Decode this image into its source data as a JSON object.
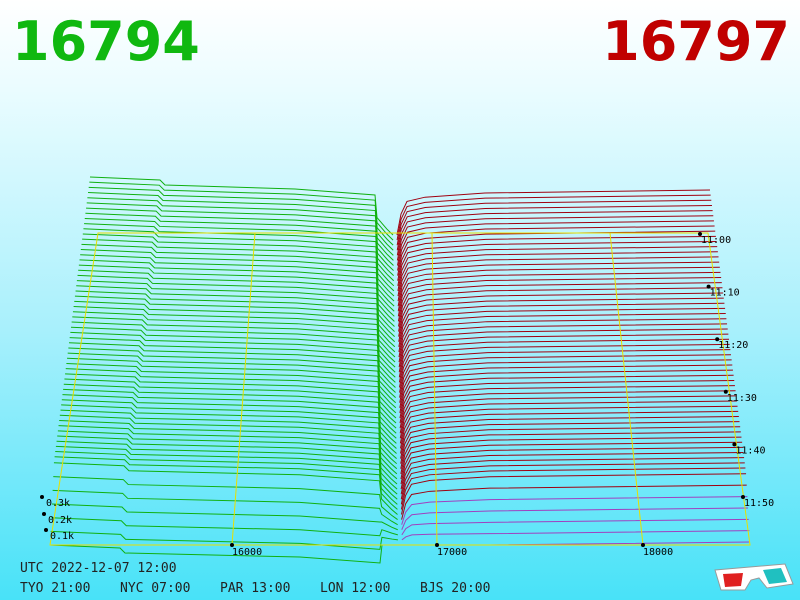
{
  "header": {
    "bid": "16794",
    "ask": "16797"
  },
  "price_axis": [
    "16000",
    "17000",
    "18000"
  ],
  "depth_axis": [
    "0.3k",
    "0.2k",
    "0.1k"
  ],
  "time_axis": [
    "11:00",
    "11:10",
    "11:20",
    "11:30",
    "11:40",
    "11:50"
  ],
  "clock": {
    "utc": "UTC 2022-12-07 12:00",
    "zones": [
      "TYO 21:00",
      "NYC 07:00",
      "PAR 13:00",
      "LON 12:00",
      "BJS 20:00"
    ]
  }
}
